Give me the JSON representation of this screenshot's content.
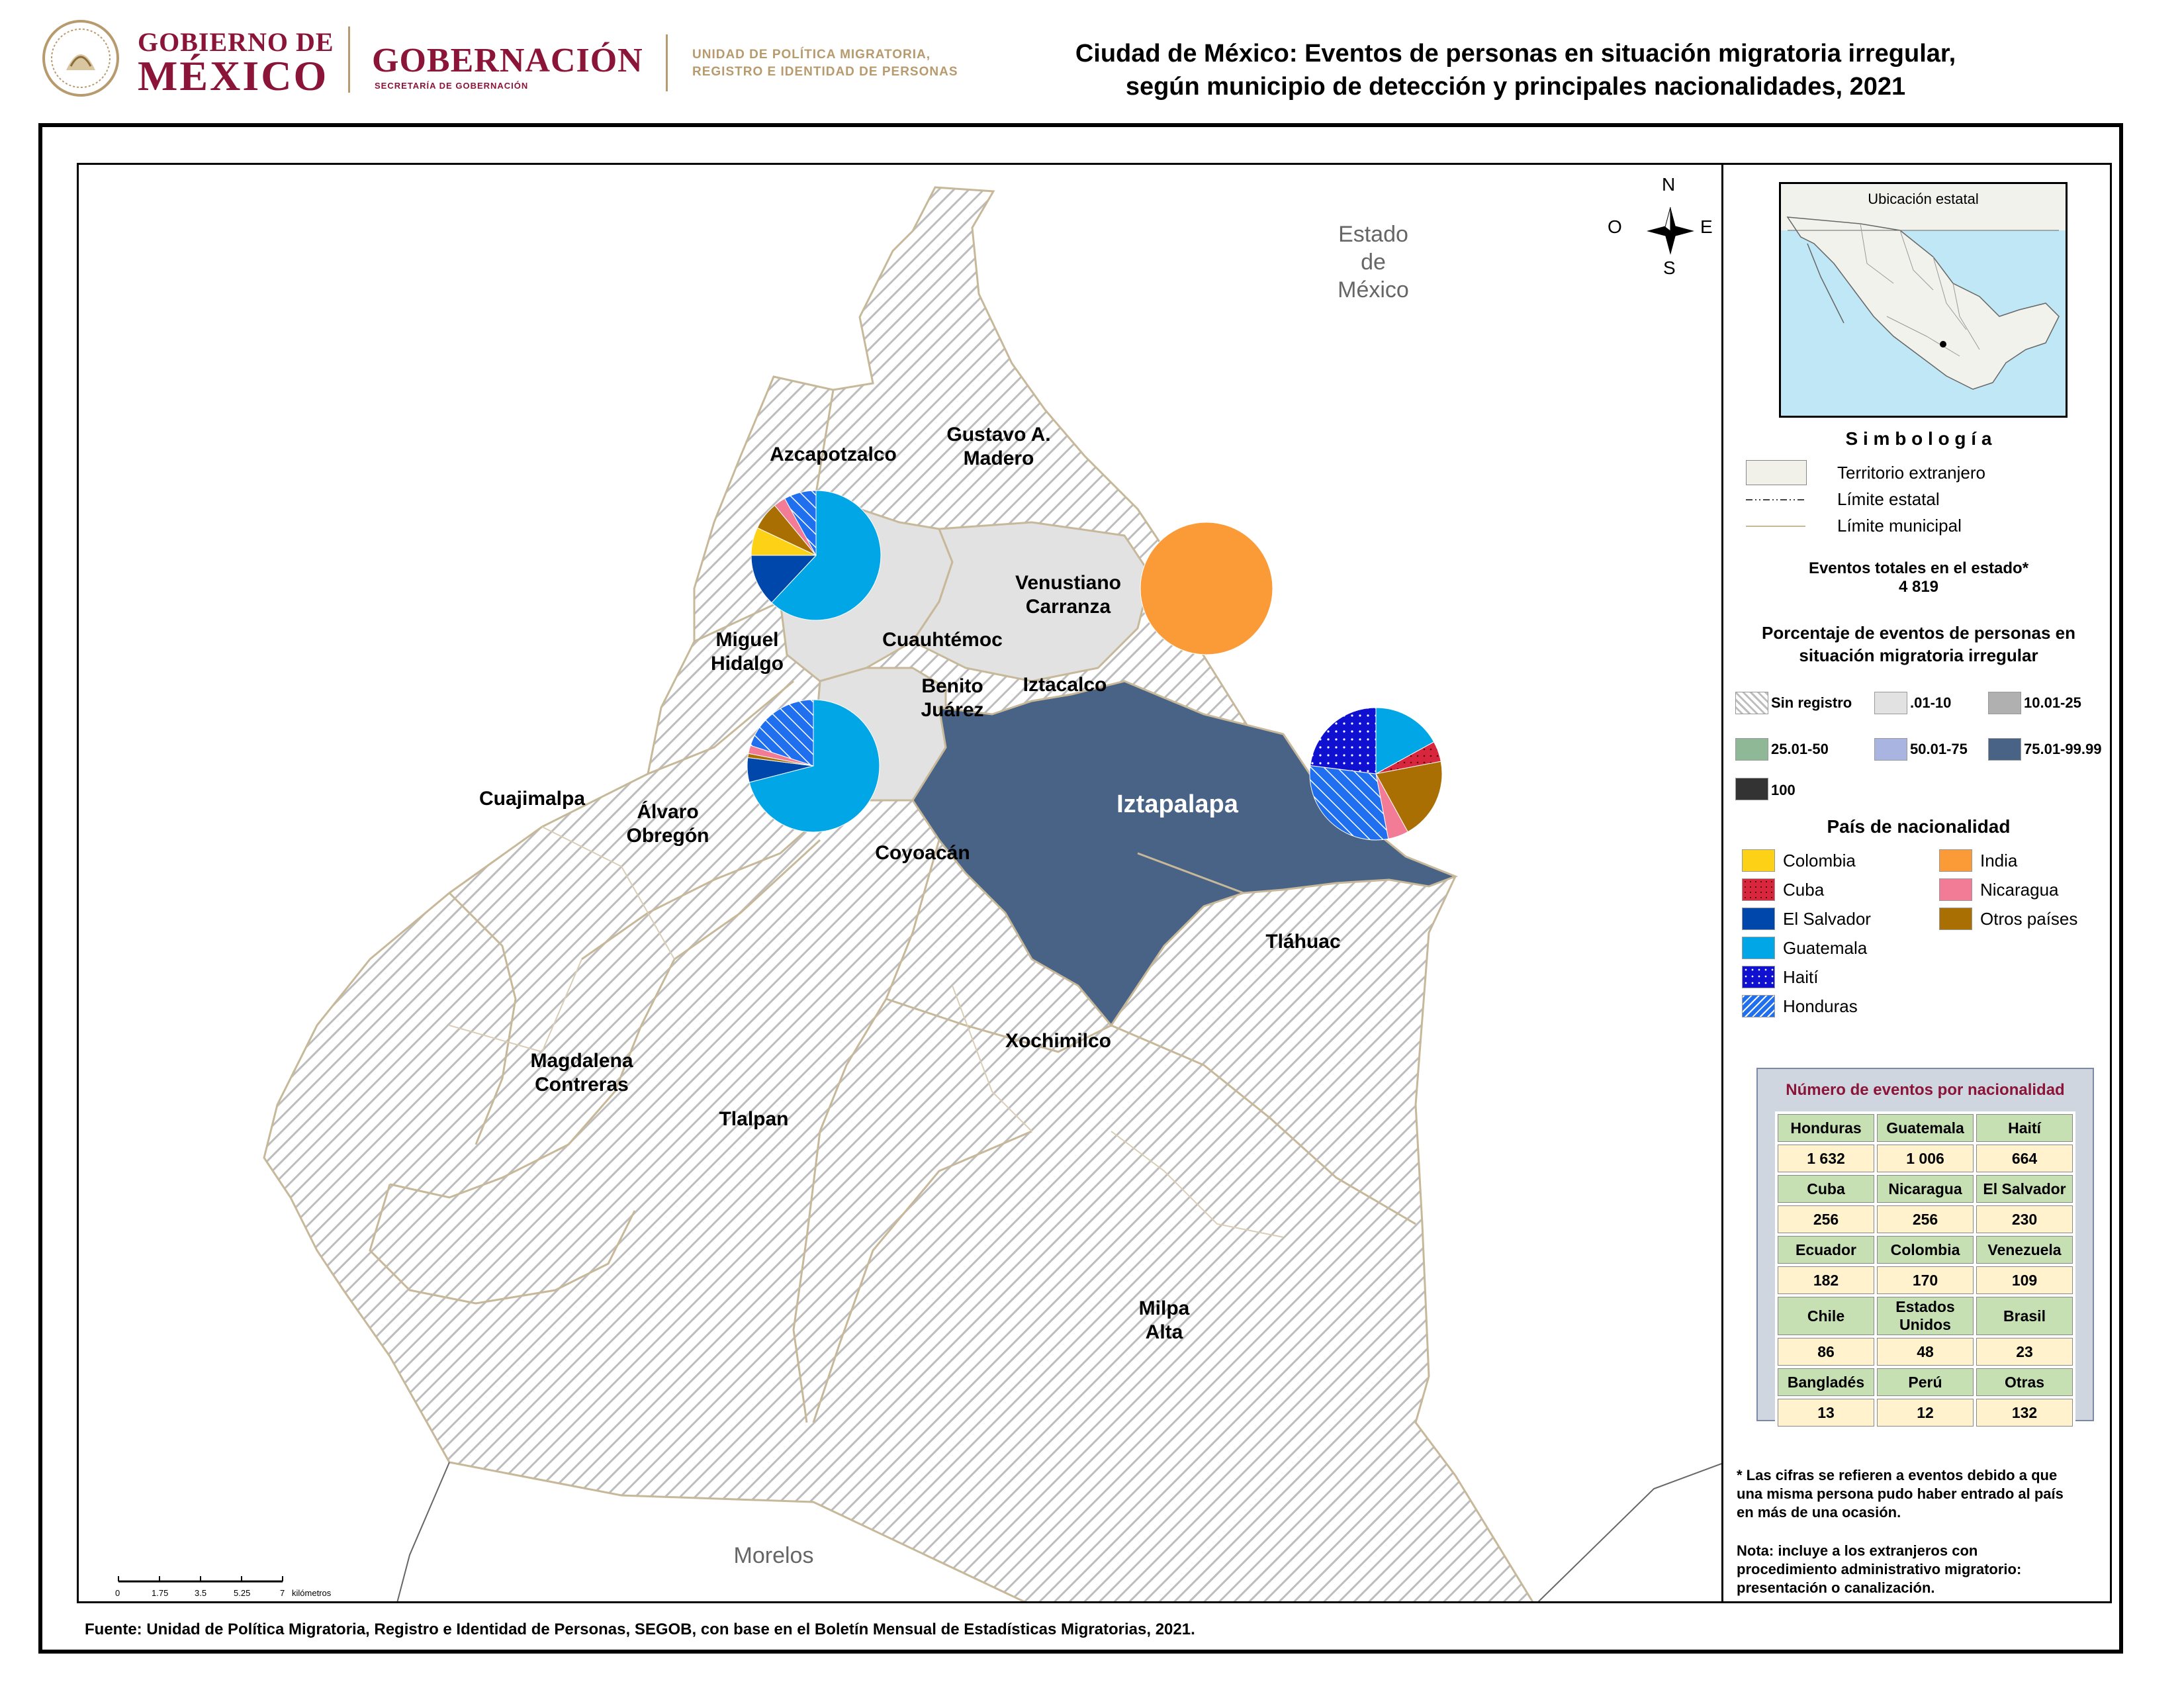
{
  "header": {
    "gov_line1": "GOBIERNO DE",
    "gov_line2": "MÉXICO",
    "ministry": "GOBERNACIÓN",
    "ministry_sub": "SECRETARÍA DE GOBERNACIÓN",
    "unit_line1": "UNIDAD DE POLÍTICA MIGRATORIA,",
    "unit_line2": "REGISTRO E IDENTIDAD DE PERSONAS",
    "title_line1": "Ciudad de México: Eventos de personas en situación migratoria irregular,",
    "title_line2": "según municipio de detección y principales nacionalidades, 2021"
  },
  "map": {
    "neighbors": {
      "edomex": "Estado\nde\nMéxico",
      "morelos": "Morelos"
    },
    "municipalities": {
      "azcapotzalco": "Azcapotzalco",
      "gam": "Gustavo A.\nMadero",
      "vc": "Venustiano\nCarranza",
      "cuauhtemoc": "Cuauhtémoc",
      "mh": "Miguel\nHidalgo",
      "bj": "Benito\nJuárez",
      "iztacalco": "Iztacalco",
      "iztapalapa": "Iztapalapa",
      "cuajimalpa": "Cuajimalpa",
      "ao": "Álvaro\nObregón",
      "coyoacan": "Coyoacán",
      "tlahuac": "Tláhuac",
      "mc": "Magdalena\nContreras",
      "xochimilco": "Xochimilco",
      "tlalpan": "Tlalpan",
      "milpa": "Milpa\nAlta"
    },
    "colors": {
      "sin_registro": "#e8e8e8",
      "r01_10": "#e2e2e2",
      "r75_9999": "#486386",
      "border": "#c8b89a"
    },
    "compass": {
      "n": "N",
      "s": "S",
      "e": "E",
      "o": "O"
    },
    "scale": {
      "ticks": [
        "0",
        "1.75",
        "3.5",
        "5.25",
        "7"
      ],
      "unit": "kilómetros"
    },
    "pies": [
      {
        "municipality": "Cuauhtémoc",
        "slices": [
          {
            "nat": "Guatemala",
            "share": 0.62
          },
          {
            "nat": "El Salvador",
            "share": 0.13
          },
          {
            "nat": "Colombia",
            "share": 0.07
          },
          {
            "nat": "Otros países",
            "share": 0.07
          },
          {
            "nat": "Nicaragua",
            "share": 0.03
          },
          {
            "nat": "Honduras",
            "share": 0.08
          }
        ]
      },
      {
        "municipality": "Benito Juárez",
        "slices": [
          {
            "nat": "Guatemala",
            "share": 0.71
          },
          {
            "nat": "El Salvador",
            "share": 0.06
          },
          {
            "nat": "Otros países",
            "share": 0.01
          },
          {
            "nat": "Nicaragua",
            "share": 0.02
          },
          {
            "nat": "Honduras",
            "share": 0.2
          }
        ]
      },
      {
        "municipality": "Venustiano Carranza",
        "slices": [
          {
            "nat": "India",
            "share": 1.0
          }
        ]
      },
      {
        "municipality": "Iztapalapa",
        "slices": [
          {
            "nat": "Guatemala",
            "share": 0.17
          },
          {
            "nat": "Cuba",
            "share": 0.05
          },
          {
            "nat": "Otros países",
            "share": 0.2
          },
          {
            "nat": "Nicaragua",
            "share": 0.05
          },
          {
            "nat": "Honduras",
            "share": 0.3
          },
          {
            "nat": "Haití",
            "share": 0.23
          }
        ]
      }
    ]
  },
  "legend": {
    "inset_title": "Ubicación estatal",
    "symbology_title": "S i m b o l o g í a",
    "symbols": [
      "Territorio extranjero",
      "Límite estatal",
      "Límite municipal"
    ],
    "total_label": "Eventos totales en el estado*",
    "total_value": "4 819",
    "pct_title_1": "Porcentaje de eventos de personas en",
    "pct_title_2": "situación migratoria irregular",
    "pct_classes": [
      {
        "label": "Sin registro",
        "color": "#e8e8e8",
        "hatch": true
      },
      {
        "label": ".01-10",
        "color": "#e2e2e2",
        "hatch": false
      },
      {
        "label": "10.01-25",
        "color": "#b0b0b0",
        "hatch": false
      },
      {
        "label": "25.01-50",
        "color": "#8fb996",
        "hatch": false
      },
      {
        "label": "50.01-75",
        "color": "#a9b4e0",
        "hatch": false
      },
      {
        "label": "75.01-99.99",
        "color": "#486386",
        "hatch": false
      },
      {
        "label": "100",
        "color": "#333333",
        "hatch": false
      }
    ],
    "nat_title": "País de nacionalidad",
    "nationalities": [
      {
        "label": "Colombia",
        "color": "#fcd116",
        "pattern": "solid"
      },
      {
        "label": "Cuba",
        "color": "#d7263d",
        "pattern": "dots"
      },
      {
        "label": "El Salvador",
        "color": "#0047ab",
        "pattern": "solid"
      },
      {
        "label": "Guatemala",
        "color": "#00a6e6",
        "pattern": "solid"
      },
      {
        "label": "Haití",
        "color": "#1010d0",
        "pattern": "dots"
      },
      {
        "label": "Honduras",
        "color": "#1f6fef",
        "pattern": "hatch"
      },
      {
        "label": "India",
        "color": "#fb9b38",
        "pattern": "solid"
      },
      {
        "label": "Nicaragua",
        "color": "#f27c95",
        "pattern": "solid"
      },
      {
        "label": "Otros países",
        "color": "#a96f02",
        "pattern": "solid"
      }
    ],
    "table_title": "Número de eventos por nacionalidad",
    "table": [
      [
        {
          "n": "Honduras",
          "v": "1 632"
        },
        {
          "n": "Guatemala",
          "v": "1 006"
        },
        {
          "n": "Haití",
          "v": "664"
        }
      ],
      [
        {
          "n": "Cuba",
          "v": "256"
        },
        {
          "n": "Nicaragua",
          "v": "256"
        },
        {
          "n": "El Salvador",
          "v": "230"
        }
      ],
      [
        {
          "n": "Ecuador",
          "v": "182"
        },
        {
          "n": "Colombia",
          "v": "170"
        },
        {
          "n": "Venezuela",
          "v": "109"
        }
      ],
      [
        {
          "n": "Chile",
          "v": "86"
        },
        {
          "n": "Estados Unidos",
          "v": "48"
        },
        {
          "n": "Brasil",
          "v": "23"
        }
      ],
      [
        {
          "n": "Bangladés",
          "v": "13"
        },
        {
          "n": "Perú",
          "v": "12"
        },
        {
          "n": "Otras",
          "v": "132"
        }
      ]
    ],
    "note1": "* Las cifras se refieren a eventos debido a que una misma persona pudo haber entrado al país en más de una ocasión.",
    "note2": "Nota: incluye a los extranjeros con procedimiento administrativo migratorio: presentación o canalización."
  },
  "footer": "Fuente: Unidad de Política Migratoria, Registro e Identidad de Personas, SEGOB, con base en el Boletín Mensual de Estadísticas Migratorias, 2021."
}
